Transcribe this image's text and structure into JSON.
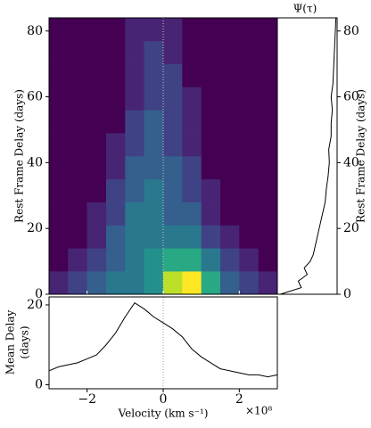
{
  "chart_data": [
    {
      "type": "heatmap",
      "ylabel": "Rest Frame Delay (days)",
      "xbins": [
        -3,
        -2.5,
        -2,
        -1.5,
        -1,
        -0.5,
        0,
        0.5,
        1,
        1.5,
        2,
        2.5,
        3
      ],
      "ybins": [
        0,
        7,
        14,
        21,
        28,
        35,
        42,
        49,
        56,
        63,
        70,
        77,
        84
      ],
      "values": [
        [
          1,
          2,
          3,
          4,
          4,
          5,
          9,
          10,
          6,
          3,
          2,
          1
        ],
        [
          0,
          1,
          2,
          3,
          4,
          5,
          6,
          6,
          4,
          2,
          1,
          0
        ],
        [
          0,
          0,
          1,
          3,
          4,
          4,
          4,
          4,
          2,
          1,
          0,
          0
        ],
        [
          0,
          0,
          1,
          2,
          4,
          4,
          3,
          3,
          1,
          0,
          0,
          0
        ],
        [
          0,
          0,
          0,
          2,
          3,
          4,
          3,
          2,
          1,
          0,
          0,
          0
        ],
        [
          0,
          0,
          0,
          1,
          3,
          3,
          3,
          2,
          0,
          0,
          0,
          0
        ],
        [
          0,
          0,
          0,
          1,
          2,
          3,
          2,
          1,
          0,
          0,
          0,
          0
        ],
        [
          0,
          0,
          0,
          0,
          2,
          3,
          2,
          1,
          0,
          0,
          0,
          0
        ],
        [
          0,
          0,
          0,
          0,
          1,
          2,
          2,
          1,
          0,
          0,
          0,
          0
        ],
        [
          0,
          0,
          0,
          0,
          1,
          2,
          2,
          0,
          0,
          0,
          0,
          0
        ],
        [
          0,
          0,
          0,
          0,
          1,
          2,
          1,
          0,
          0,
          0,
          0,
          0
        ],
        [
          0,
          0,
          0,
          0,
          1,
          1,
          1,
          0,
          0,
          0,
          0,
          0
        ]
      ],
      "colormap": "viridis",
      "clim": [
        0,
        10
      ],
      "xlim": [
        -3,
        3
      ],
      "ylim": [
        0,
        84
      ],
      "xticks": [
        -2,
        0,
        2
      ],
      "yticks": [
        0,
        20,
        40,
        60,
        80
      ],
      "vline": 0
    },
    {
      "type": "profile",
      "title": "Ψ(τ)",
      "ylabel": "Rest Frame Delay (days)",
      "y": [
        0,
        2,
        4,
        6,
        8,
        10,
        12,
        16,
        20,
        24,
        28,
        32,
        36,
        40,
        44,
        48,
        52,
        56,
        60,
        64,
        68,
        72,
        76,
        80,
        84
      ],
      "values": [
        0.05,
        0.4,
        0.35,
        0.5,
        0.45,
        0.55,
        0.6,
        0.65,
        0.7,
        0.75,
        0.8,
        0.82,
        0.85,
        0.87,
        0.86,
        0.9,
        0.9,
        0.92,
        0.9,
        0.93,
        0.94,
        0.95,
        0.96,
        0.97,
        0.98
      ],
      "color": "#000000",
      "xlim": [
        0,
        1
      ],
      "ylim": [
        0,
        84
      ],
      "yticks": [
        0,
        20,
        40,
        60,
        80
      ]
    },
    {
      "type": "line",
      "xlabel": "Velocity (km s⁻¹)",
      "xoffset": "×10⁸",
      "ylabel": [
        "Mean Delay",
        "(days)"
      ],
      "x": [
        -3,
        -2.75,
        -2.5,
        -2.25,
        -2,
        -1.75,
        -1.5,
        -1.25,
        -1,
        -0.75,
        -0.5,
        -0.25,
        0,
        0.25,
        0.5,
        0.75,
        1,
        1.25,
        1.5,
        1.75,
        2,
        2.25,
        2.5,
        2.75,
        3
      ],
      "values": [
        3.5,
        4.5,
        5,
        5.5,
        6.5,
        7.5,
        10,
        13,
        17,
        20.5,
        19,
        17,
        15.5,
        14,
        12,
        9,
        7,
        5.5,
        4,
        3.5,
        3,
        2.5,
        2.5,
        2,
        2.5
      ],
      "color": "#000000",
      "xlim": [
        -3,
        3
      ],
      "ylim": [
        -1,
        22
      ],
      "xticks": [
        {
          "value": -2,
          "label": "−2"
        },
        0,
        2
      ],
      "yticks": [
        0,
        20
      ],
      "vline": 0
    }
  ]
}
